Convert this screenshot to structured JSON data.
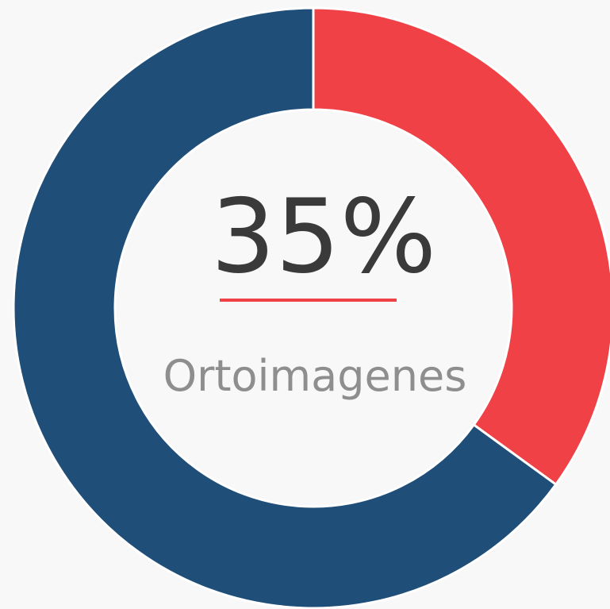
{
  "chart_data": {
    "type": "pie",
    "donut": true,
    "categories": [
      "Ortoimagenes",
      null
    ],
    "values": [
      35,
      65
    ],
    "value_labels": [
      "35%",
      null
    ],
    "colors": [
      "#f04146",
      "#1f4e79"
    ]
  }
}
